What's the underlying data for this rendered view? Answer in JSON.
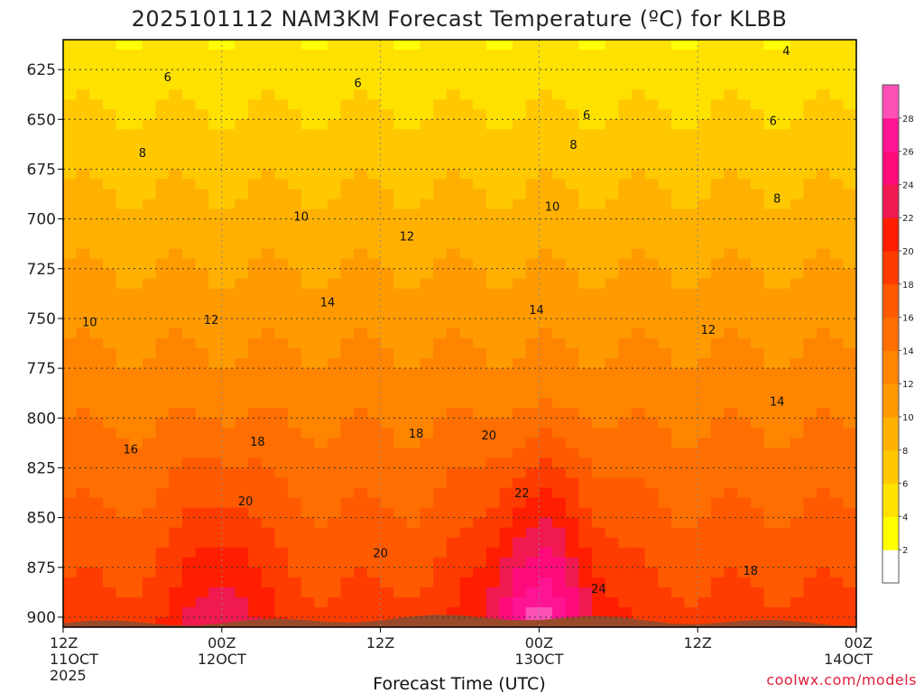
{
  "header": {
    "title": "2025101112 NAM3KM Forecast Temperature (ºC) for KLBB"
  },
  "footer": {
    "credit": "coolwx.com/models"
  },
  "chart_data": {
    "type": "heatmap",
    "title": "2025101112 NAM3KM Forecast Temperature (ºC) for KLBB",
    "xlabel": "Forecast Time (UTC)",
    "ylabel": "",
    "x_ticks": [
      {
        "line1": "12Z",
        "line2": "11OCT",
        "line3": "2025"
      },
      {
        "line1": "00Z",
        "line2": "12OCT",
        "line3": ""
      },
      {
        "line1": "12Z",
        "line2": "",
        "line3": ""
      },
      {
        "line1": "00Z",
        "line2": "13OCT",
        "line3": ""
      },
      {
        "line1": "12Z",
        "line2": "",
        "line3": ""
      },
      {
        "line1": "00Z",
        "line2": "14OCT",
        "line3": ""
      }
    ],
    "x_hours": [
      0,
      12,
      24,
      36,
      48,
      60
    ],
    "y_ticks": [
      625,
      650,
      675,
      700,
      725,
      750,
      775,
      800,
      825,
      850,
      875,
      900
    ],
    "ylim": [
      905,
      610
    ],
    "y_scale": "linear-pressure (hPa), inverted",
    "grid": true,
    "colorbar": {
      "ticks": [
        2,
        4,
        6,
        8,
        10,
        12,
        14,
        16,
        18,
        20,
        22,
        24,
        26,
        28
      ],
      "colors": [
        "#ffffff",
        "#ffff00",
        "#ffe100",
        "#ffc800",
        "#ffb000",
        "#ff9a00",
        "#ff8400",
        "#ff6e00",
        "#ff5a00",
        "#ff3c00",
        "#ff1e00",
        "#f01a50",
        "#ff0a7a",
        "#ff1493",
        "#ff50b8"
      ],
      "placement": "right"
    },
    "contour_labels": [
      {
        "text": "6",
        "hour": 7.9,
        "p": 629
      },
      {
        "text": "6",
        "hour": 22.3,
        "p": 632
      },
      {
        "text": "6",
        "hour": 39.6,
        "p": 648
      },
      {
        "text": "6",
        "hour": 53.7,
        "p": 651
      },
      {
        "text": "4",
        "hour": 54.7,
        "p": 616
      },
      {
        "text": "8",
        "hour": 6.0,
        "p": 667
      },
      {
        "text": "8",
        "hour": 38.6,
        "p": 663
      },
      {
        "text": "8",
        "hour": 54.0,
        "p": 690
      },
      {
        "text": "10",
        "hour": 2.0,
        "p": 752
      },
      {
        "text": "10",
        "hour": 18.0,
        "p": 699
      },
      {
        "text": "10",
        "hour": 37.0,
        "p": 694
      },
      {
        "text": "12",
        "hour": 11.2,
        "p": 751
      },
      {
        "text": "12",
        "hour": 26.0,
        "p": 709
      },
      {
        "text": "12",
        "hour": 48.8,
        "p": 756
      },
      {
        "text": "14",
        "hour": 20.0,
        "p": 742
      },
      {
        "text": "14",
        "hour": 35.8,
        "p": 746
      },
      {
        "text": "14",
        "hour": 54.0,
        "p": 792
      },
      {
        "text": "16",
        "hour": 5.1,
        "p": 816
      },
      {
        "text": "18",
        "hour": 14.7,
        "p": 812
      },
      {
        "text": "18",
        "hour": 26.7,
        "p": 808
      },
      {
        "text": "18",
        "hour": 52.0,
        "p": 877
      },
      {
        "text": "20",
        "hour": 13.8,
        "p": 842
      },
      {
        "text": "20",
        "hour": 24.0,
        "p": 868
      },
      {
        "text": "20",
        "hour": 32.2,
        "p": 809
      },
      {
        "text": "22",
        "hour": 34.7,
        "p": 838
      },
      {
        "text": "24",
        "hour": 40.5,
        "p": 886
      }
    ],
    "ground_color": "#9a4a2a"
  }
}
